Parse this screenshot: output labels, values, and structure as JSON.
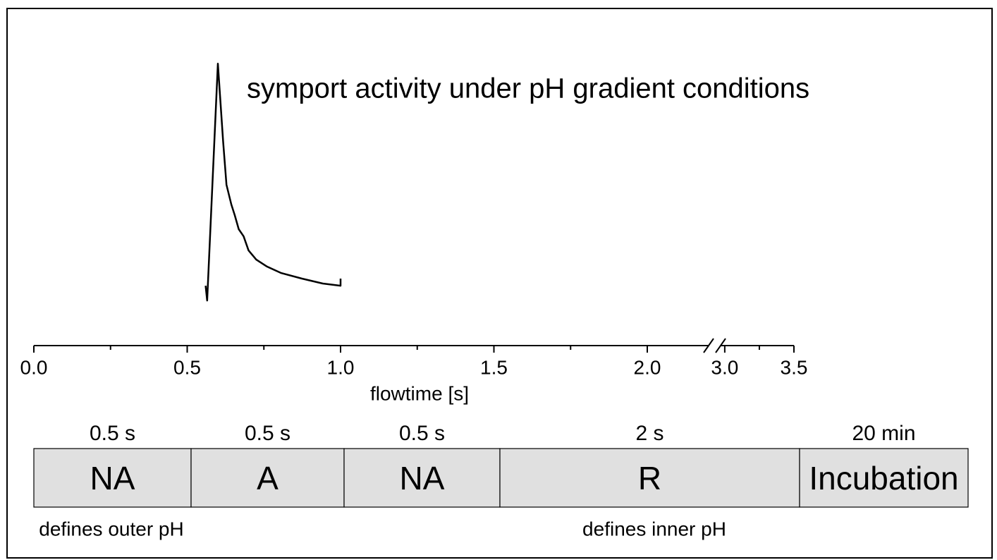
{
  "chart_data": {
    "type": "line",
    "title": "symport activity under pH gradient conditions",
    "x_label": "flowtime [s]",
    "x": [
      0.56,
      0.565,
      0.6,
      0.617,
      0.628,
      0.644,
      0.655,
      0.668,
      0.684,
      0.7,
      0.725,
      0.76,
      0.805,
      0.874,
      0.942,
      1.0,
      1.0
    ],
    "series": [
      {
        "color": "#000000",
        "values": [
          7.1,
          1.1,
          97.1,
          65.7,
          48,
          40,
          35.7,
          30,
          27.1,
          21.4,
          17.7,
          14.9,
          12.3,
          10,
          8,
          7.1,
          10
        ]
      }
    ],
    "xlim": [
      0,
      3.5
    ],
    "xbreak": [
      2.2,
      2.97
    ],
    "ylim": [
      0,
      100
    ],
    "xticks": [
      {
        "value": 0,
        "label": "0.0"
      },
      0.5,
      {
        "value": 1,
        "label": "1.0"
      },
      1.5,
      {
        "value": 2,
        "label": "2.0"
      },
      {
        "value": 3,
        "label": "3.0"
      },
      3.5
    ],
    "xminorticks": [
      0.25,
      0.75,
      1.25,
      1.75,
      3.25
    ]
  },
  "protocol": {
    "steps": [
      {
        "duration": "0.5 s",
        "label": "NA"
      },
      {
        "duration": "0.5 s",
        "label": "A"
      },
      {
        "duration": "0.5 s",
        "label": "NA"
      },
      {
        "duration": "2 s",
        "label": "R"
      },
      {
        "duration": "20 min",
        "label": "Incubation"
      }
    ],
    "notes": [
      "defines outer pH",
      "defines inner pH"
    ]
  }
}
